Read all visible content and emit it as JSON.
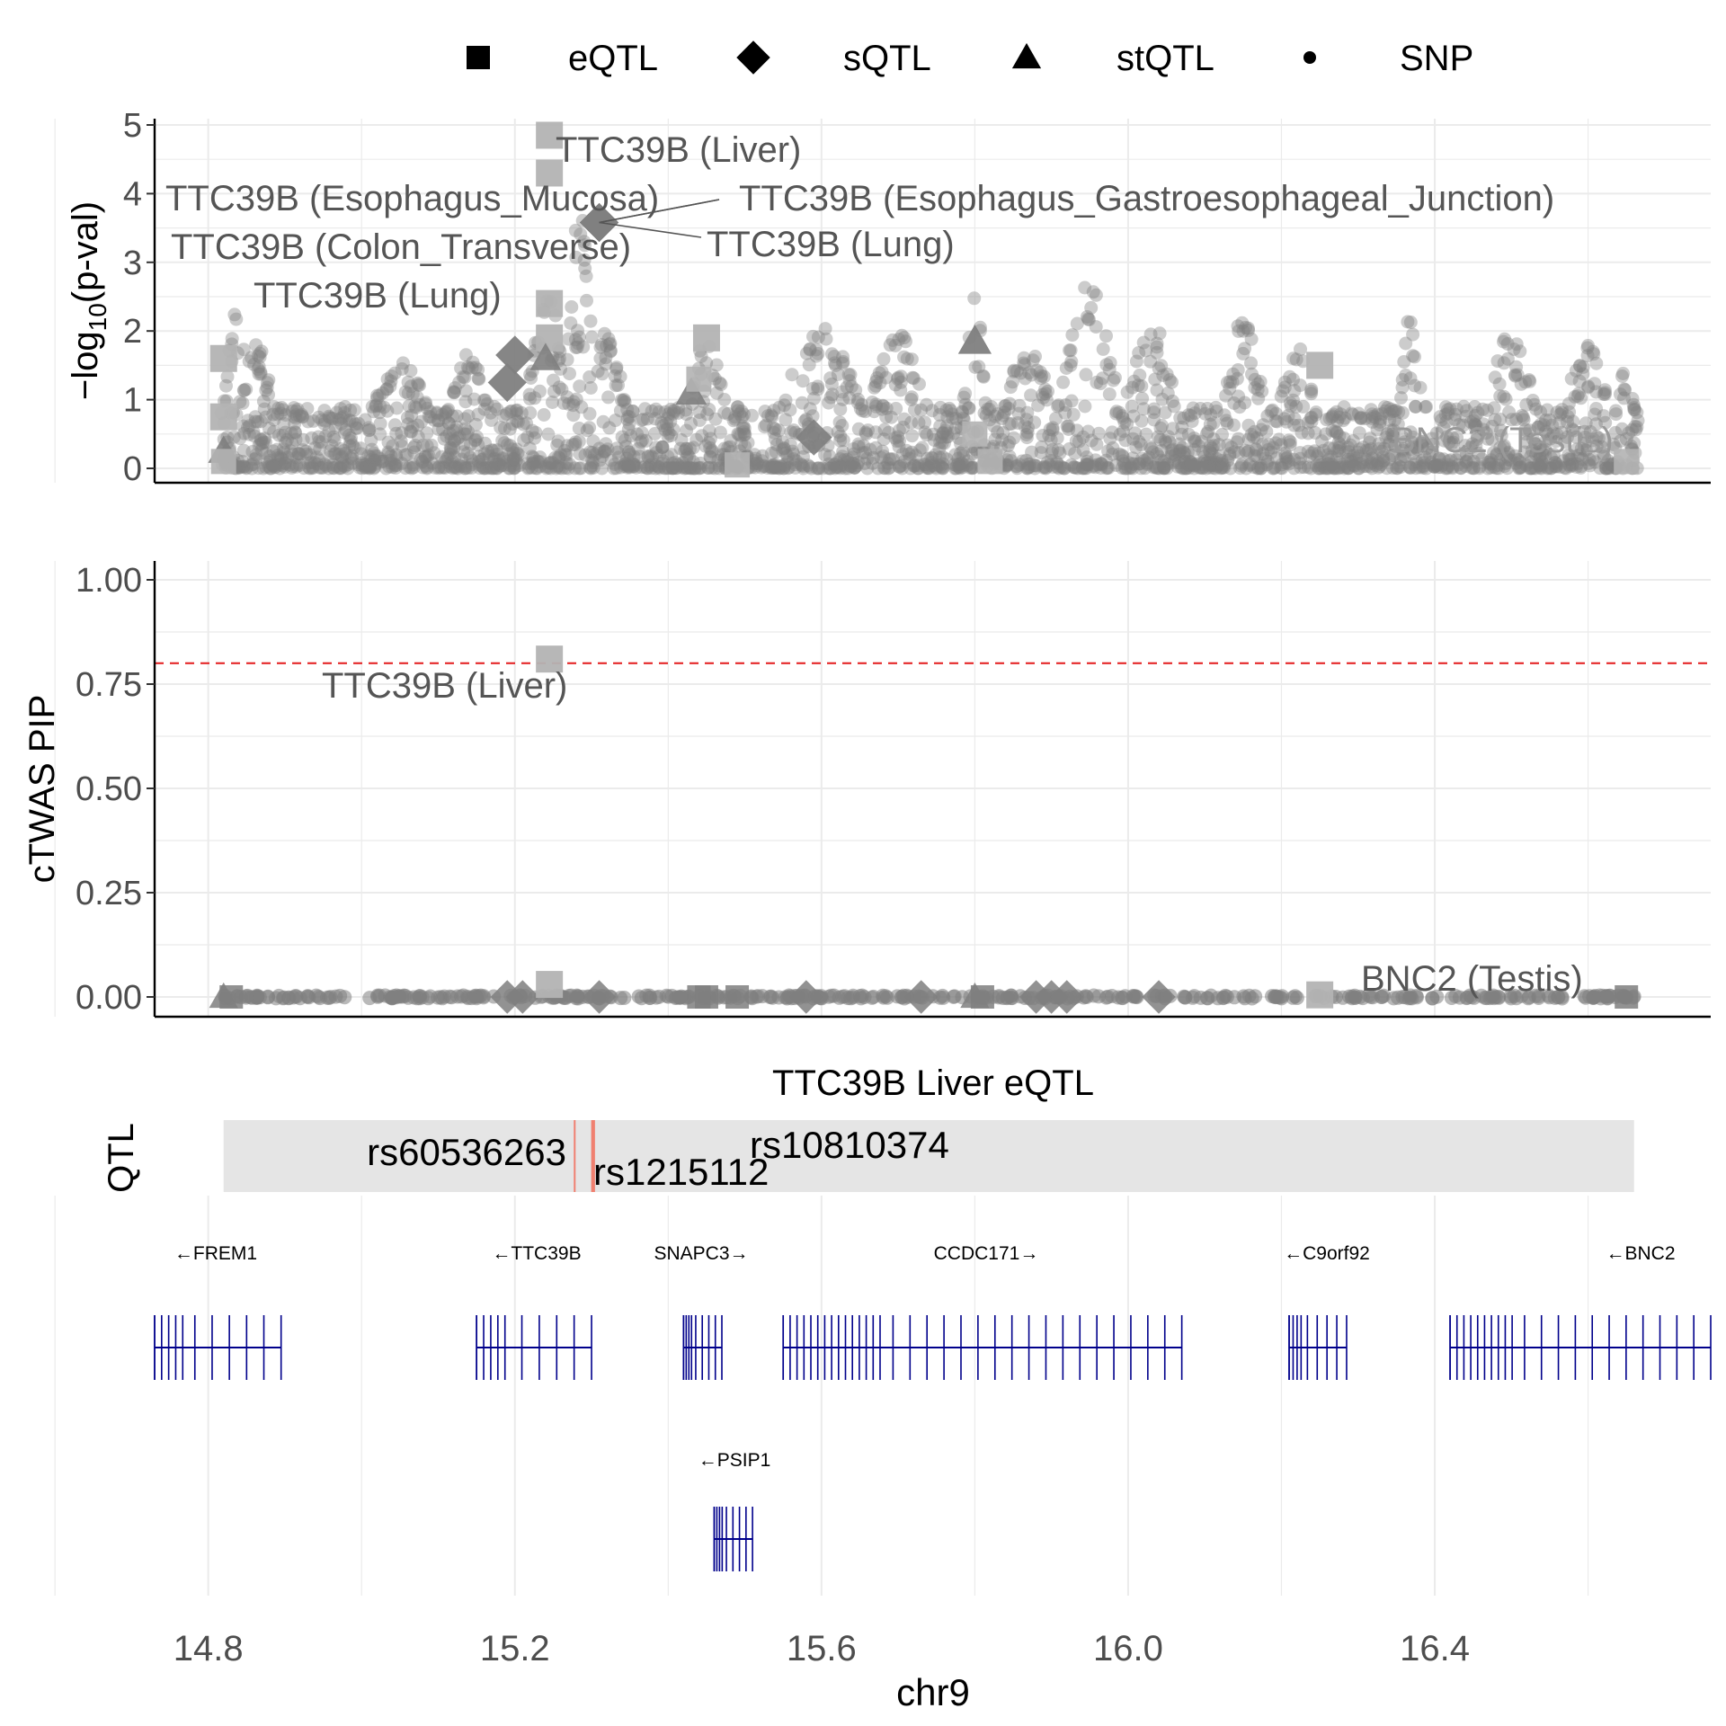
{
  "legend": {
    "items": [
      {
        "shape": "square",
        "label": "eQTL"
      },
      {
        "shape": "diamond",
        "label": "sQTL"
      },
      {
        "shape": "triangle",
        "label": "stQTL"
      },
      {
        "shape": "circle",
        "label": "SNP"
      }
    ],
    "position": "top"
  },
  "colors": {
    "point": "#7f7f7f",
    "highlight_square": "#b3b3b3",
    "threshold": "#e31a1c",
    "gene": "#00008b",
    "qtl_band": "#e5e5e5",
    "qtl_line": "#f08070",
    "grid": "#ebebeb"
  },
  "chart_data": [
    {
      "type": "scatter",
      "panel": "association",
      "ylabel": "−log10(p-val)",
      "ylim": [
        0,
        5
      ],
      "yticks": [
        "0",
        "1",
        "2",
        "3",
        "4",
        "5"
      ],
      "xlim": [
        14.73,
        16.76
      ],
      "grid": true,
      "background_points": "dense SNP cloud, mostly −log10(p) 0–2, peaks near 15.22–15.30 (~3.8), 15.80 (~2.9), 15.95 (~2.8), 16.37 (~2.5)",
      "highlights": [
        {
          "x": 15.245,
          "y": 4.85,
          "shape": "square",
          "label": "TTC39B (Liver)"
        },
        {
          "x": 15.245,
          "y": 4.3,
          "shape": "square",
          "label": ""
        },
        {
          "x": 15.31,
          "y": 3.58,
          "shape": "diamond",
          "label": "TTC39B (Esophagus_Mucosa)"
        },
        {
          "x": 15.31,
          "y": 3.58,
          "shape": "diamond",
          "label": "TTC39B (Esophagus_Gastroesophageal_Junction)"
        },
        {
          "x": 15.31,
          "y": 3.58,
          "shape": "diamond",
          "label": "TTC39B (Lung)"
        },
        {
          "x": 15.245,
          "y": 2.4,
          "shape": "square",
          "label": "TTC39B (Colon_Transverse)"
        },
        {
          "x": 15.245,
          "y": 1.9,
          "shape": "square",
          "label": "TTC39B (Lung)"
        },
        {
          "x": 14.82,
          "y": 1.6,
          "shape": "square",
          "label": ""
        },
        {
          "x": 14.82,
          "y": 0.75,
          "shape": "square",
          "label": ""
        },
        {
          "x": 16.25,
          "y": 1.5,
          "shape": "square",
          "label": "BNC2 (Testis)"
        },
        {
          "x": 15.45,
          "y": 1.9,
          "shape": "square",
          "label": ""
        },
        {
          "x": 15.8,
          "y": 1.85,
          "shape": "triangle",
          "label": ""
        },
        {
          "x": 15.2,
          "y": 1.65,
          "shape": "diamond",
          "label": ""
        },
        {
          "x": 15.19,
          "y": 1.25,
          "shape": "diamond",
          "label": ""
        }
      ]
    },
    {
      "type": "scatter",
      "panel": "pip",
      "ylabel": "cTWAS PIP",
      "ylim": [
        0,
        1.05
      ],
      "yticks": [
        "0.00",
        "0.25",
        "0.50",
        "0.75",
        "1.00"
      ],
      "threshold": 0.8,
      "grid": true,
      "points": [
        {
          "x": 15.245,
          "y": 0.81,
          "shape": "square",
          "label": "TTC39B (Liver)"
        },
        {
          "x": 15.245,
          "y": 0.03,
          "shape": "square",
          "label": ""
        },
        {
          "x": 16.25,
          "y": 0.005,
          "shape": "square",
          "label": "BNC2 (Testis)"
        }
      ]
    },
    {
      "type": "table",
      "panel": "qtl_track",
      "title": "TTC39B Liver eQTL",
      "ylabel": "QTL",
      "region": [
        14.82,
        16.66
      ],
      "qtls": [
        {
          "x": 15.278,
          "label": "rs60536263"
        },
        {
          "x": 15.302,
          "label": "rs1215112"
        },
        {
          "x": 15.302,
          "label": "rs10810374"
        }
      ]
    },
    {
      "type": "table",
      "panel": "gene_track",
      "xlabel": "chr9",
      "xticks": [
        14.8,
        15.2,
        15.6,
        16.0,
        16.4
      ],
      "xtick_labels": [
        "14.8",
        "15.2",
        "15.6",
        "16.0",
        "16.4"
      ],
      "genes": [
        {
          "name": "←FREM1",
          "start": 14.73,
          "end": 14.895,
          "row": 1
        },
        {
          "name": "←TTC39B",
          "start": 15.15,
          "end": 15.3,
          "row": 1
        },
        {
          "name": "SNAPC3→",
          "start": 15.42,
          "end": 15.47,
          "row": 1
        },
        {
          "name": "CCDC171→",
          "start": 15.55,
          "end": 16.07,
          "row": 1
        },
        {
          "name": "←C9orf92",
          "start": 16.21,
          "end": 16.285,
          "row": 1
        },
        {
          "name": "←BNC2",
          "start": 16.42,
          "end": 16.76,
          "row": 1
        },
        {
          "name": "←PSIP1",
          "start": 15.46,
          "end": 15.51,
          "row": 2
        }
      ]
    }
  ]
}
